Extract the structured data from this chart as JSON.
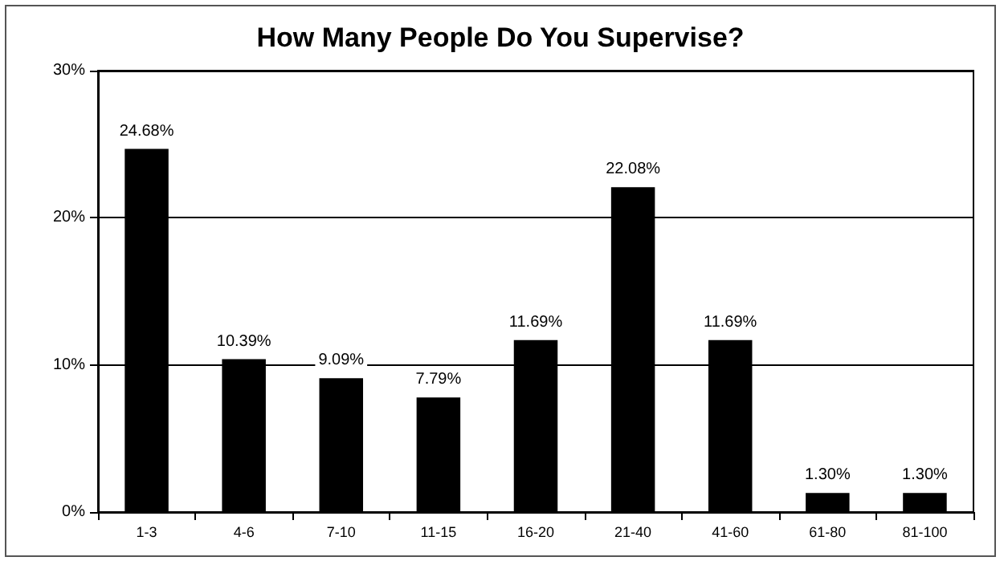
{
  "chart_data": {
    "type": "bar",
    "title": "How Many People Do You Supervise?",
    "categories": [
      "1-3",
      "4-6",
      "7-10",
      "11-15",
      "16-20",
      "21-40",
      "41-60",
      "61-80",
      "81-100"
    ],
    "values": [
      24.68,
      10.39,
      9.09,
      7.79,
      11.69,
      22.08,
      11.69,
      1.3,
      1.3
    ],
    "value_labels": [
      "24.68%",
      "10.39%",
      "9.09%",
      "7.79%",
      "11.69%",
      "22.08%",
      "11.69%",
      "1.30%",
      "1.30%"
    ],
    "color": "#000000",
    "ylim": [
      0,
      30
    ],
    "yticks": [
      {
        "value": 0,
        "label": "0%"
      },
      {
        "value": 10,
        "label": "10%"
      },
      {
        "value": 20,
        "label": "20%"
      },
      {
        "value": 30,
        "label": "30%"
      }
    ],
    "grid": "y"
  }
}
